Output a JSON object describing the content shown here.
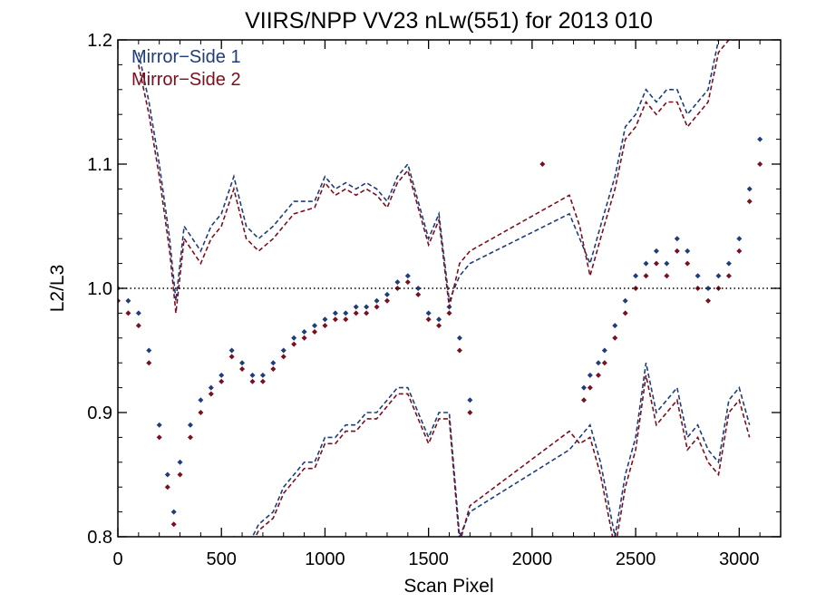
{
  "chart_data": {
    "type": "scatter",
    "title": "VIIRS/NPP VV23 nLw(551) for 2013 010",
    "xlabel": "Scan Pixel",
    "ylabel": "L2/L3",
    "xlim": [
      0,
      3200
    ],
    "ylim": [
      0.8,
      1.2
    ],
    "x_ticks": [
      0,
      500,
      1000,
      1500,
      2000,
      2500,
      3000
    ],
    "x_tick_labels": [
      "0",
      "500",
      "1000",
      "1500",
      "2000",
      "2500",
      "3000"
    ],
    "y_ticks": [
      0.8,
      0.9,
      1.0,
      1.1,
      1.2
    ],
    "y_tick_labels": [
      "0.8",
      "0.9",
      "1.0",
      "1.1",
      "1.2"
    ],
    "reference_line": {
      "y": 1.0,
      "style": "dotted",
      "color": "#000000"
    },
    "legend_position": "top-left",
    "series": [
      {
        "name": "Mirror−Side 1",
        "color": "#1f3d7a",
        "points_x": [
          0,
          50,
          100,
          150,
          200,
          240,
          270,
          300,
          350,
          400,
          450,
          500,
          550,
          600,
          650,
          700,
          750,
          800,
          850,
          900,
          950,
          1000,
          1050,
          1100,
          1150,
          1200,
          1250,
          1300,
          1350,
          1400,
          1450,
          1500,
          1550,
          1600,
          1650,
          1700,
          2250,
          2280,
          2320,
          2350,
          2400,
          2450,
          2500,
          2550,
          2600,
          2650,
          2700,
          2750,
          2800,
          2850,
          2900,
          2950,
          3000,
          3050,
          3100
        ],
        "points_y": [
          1.0,
          0.99,
          0.98,
          0.95,
          0.89,
          0.85,
          0.82,
          0.86,
          0.89,
          0.91,
          0.92,
          0.93,
          0.95,
          0.94,
          0.93,
          0.93,
          0.94,
          0.95,
          0.96,
          0.965,
          0.97,
          0.975,
          0.98,
          0.98,
          0.985,
          0.985,
          0.99,
          0.995,
          1.005,
          1.01,
          1.0,
          0.98,
          0.975,
          0.985,
          0.96,
          0.91,
          0.92,
          0.93,
          0.94,
          0.95,
          0.97,
          0.99,
          1.01,
          1.02,
          1.03,
          1.02,
          1.04,
          1.03,
          1.01,
          1.0,
          1.01,
          1.02,
          1.04,
          1.08,
          1.12
        ],
        "upper_bound_x": [
          100,
          150,
          200,
          250,
          280,
          320,
          400,
          450,
          500,
          560,
          620,
          680,
          750,
          850,
          950,
          1000,
          1050,
          1100,
          1150,
          1200,
          1250,
          1300,
          1350,
          1400,
          1450,
          1500,
          1550,
          1600,
          1650,
          1700,
          2180,
          2230,
          2280,
          2330,
          2400,
          2450,
          2500,
          2550,
          2600,
          2650,
          2700,
          2750,
          2800,
          2850,
          2900,
          2950,
          3000
        ],
        "upper_bound_y": [
          1.19,
          1.15,
          1.1,
          1.04,
          0.99,
          1.05,
          1.03,
          1.05,
          1.06,
          1.09,
          1.05,
          1.04,
          1.05,
          1.07,
          1.07,
          1.09,
          1.08,
          1.085,
          1.08,
          1.085,
          1.08,
          1.07,
          1.09,
          1.1,
          1.07,
          1.04,
          1.06,
          0.99,
          1.01,
          1.02,
          1.06,
          1.04,
          1.02,
          1.05,
          1.09,
          1.13,
          1.14,
          1.16,
          1.15,
          1.16,
          1.16,
          1.14,
          1.15,
          1.16,
          1.2,
          1.21,
          1.21
        ],
        "lower_bound_x": [
          500,
          560,
          620,
          680,
          750,
          800,
          850,
          900,
          950,
          1000,
          1050,
          1100,
          1150,
          1200,
          1250,
          1300,
          1350,
          1400,
          1450,
          1500,
          1550,
          1600,
          1650,
          1700,
          2180,
          2230,
          2280,
          2330,
          2400,
          2450,
          2500,
          2550,
          2600,
          2650,
          2700,
          2750,
          2800,
          2850,
          2900,
          2950,
          3000,
          3050
        ],
        "lower_bound_y": [
          0.79,
          0.8,
          0.79,
          0.81,
          0.82,
          0.84,
          0.85,
          0.86,
          0.86,
          0.88,
          0.88,
          0.89,
          0.89,
          0.9,
          0.9,
          0.91,
          0.92,
          0.92,
          0.9,
          0.88,
          0.9,
          0.9,
          0.8,
          0.82,
          0.87,
          0.88,
          0.89,
          0.86,
          0.8,
          0.85,
          0.88,
          0.94,
          0.9,
          0.91,
          0.92,
          0.88,
          0.89,
          0.87,
          0.86,
          0.91,
          0.92,
          0.89
        ]
      },
      {
        "name": "Mirror−Side 2",
        "color": "#7a0f1f",
        "points_x": [
          0,
          50,
          100,
          150,
          200,
          240,
          270,
          300,
          350,
          400,
          450,
          500,
          550,
          600,
          650,
          700,
          750,
          800,
          850,
          900,
          950,
          1000,
          1050,
          1100,
          1150,
          1200,
          1250,
          1300,
          1350,
          1400,
          1450,
          1500,
          1550,
          1600,
          1650,
          1700,
          2050,
          2250,
          2280,
          2320,
          2350,
          2400,
          2450,
          2500,
          2550,
          2600,
          2650,
          2700,
          2750,
          2800,
          2850,
          2900,
          2950,
          3000,
          3050,
          3100
        ],
        "points_y": [
          0.99,
          0.98,
          0.97,
          0.94,
          0.88,
          0.84,
          0.81,
          0.85,
          0.88,
          0.9,
          0.915,
          0.925,
          0.945,
          0.935,
          0.925,
          0.925,
          0.935,
          0.945,
          0.955,
          0.96,
          0.965,
          0.97,
          0.975,
          0.975,
          0.98,
          0.98,
          0.985,
          0.99,
          1.0,
          1.005,
          0.995,
          0.975,
          0.97,
          0.98,
          0.95,
          0.9,
          1.1,
          0.91,
          0.92,
          0.93,
          0.94,
          0.96,
          0.98,
          1.0,
          1.01,
          1.02,
          1.01,
          1.03,
          1.02,
          1.0,
          0.99,
          1.0,
          1.01,
          1.03,
          1.07,
          1.1
        ],
        "upper_bound_x": [
          100,
          150,
          200,
          250,
          280,
          320,
          400,
          450,
          500,
          560,
          620,
          680,
          750,
          850,
          950,
          1000,
          1050,
          1100,
          1150,
          1200,
          1250,
          1300,
          1350,
          1400,
          1450,
          1500,
          1550,
          1600,
          1650,
          1700,
          2180,
          2230,
          2280,
          2330,
          2400,
          2450,
          2500,
          2550,
          2600,
          2650,
          2700,
          2750,
          2800,
          2850,
          2900,
          2950,
          3000
        ],
        "upper_bound_y": [
          1.18,
          1.14,
          1.09,
          1.03,
          0.98,
          1.04,
          1.02,
          1.04,
          1.05,
          1.08,
          1.04,
          1.03,
          1.04,
          1.06,
          1.065,
          1.085,
          1.075,
          1.08,
          1.075,
          1.08,
          1.075,
          1.065,
          1.085,
          1.095,
          1.065,
          1.035,
          1.055,
          0.985,
          1.02,
          1.03,
          1.075,
          1.05,
          1.01,
          1.04,
          1.08,
          1.12,
          1.13,
          1.15,
          1.14,
          1.15,
          1.15,
          1.13,
          1.14,
          1.15,
          1.19,
          1.2,
          1.2
        ],
        "lower_bound_x": [
          500,
          560,
          620,
          680,
          750,
          800,
          850,
          900,
          950,
          1000,
          1050,
          1100,
          1150,
          1200,
          1250,
          1300,
          1350,
          1400,
          1450,
          1500,
          1550,
          1600,
          1650,
          1700,
          2180,
          2230,
          2280,
          2330,
          2400,
          2450,
          2500,
          2550,
          2600,
          2650,
          2700,
          2750,
          2800,
          2850,
          2900,
          2950,
          3000,
          3050
        ],
        "lower_bound_y": [
          0.785,
          0.795,
          0.785,
          0.805,
          0.815,
          0.835,
          0.845,
          0.855,
          0.855,
          0.875,
          0.875,
          0.885,
          0.885,
          0.895,
          0.895,
          0.905,
          0.915,
          0.915,
          0.895,
          0.875,
          0.895,
          0.895,
          0.795,
          0.825,
          0.885,
          0.875,
          0.88,
          0.85,
          0.79,
          0.84,
          0.87,
          0.93,
          0.89,
          0.9,
          0.91,
          0.87,
          0.88,
          0.86,
          0.85,
          0.9,
          0.91,
          0.88
        ]
      }
    ]
  }
}
